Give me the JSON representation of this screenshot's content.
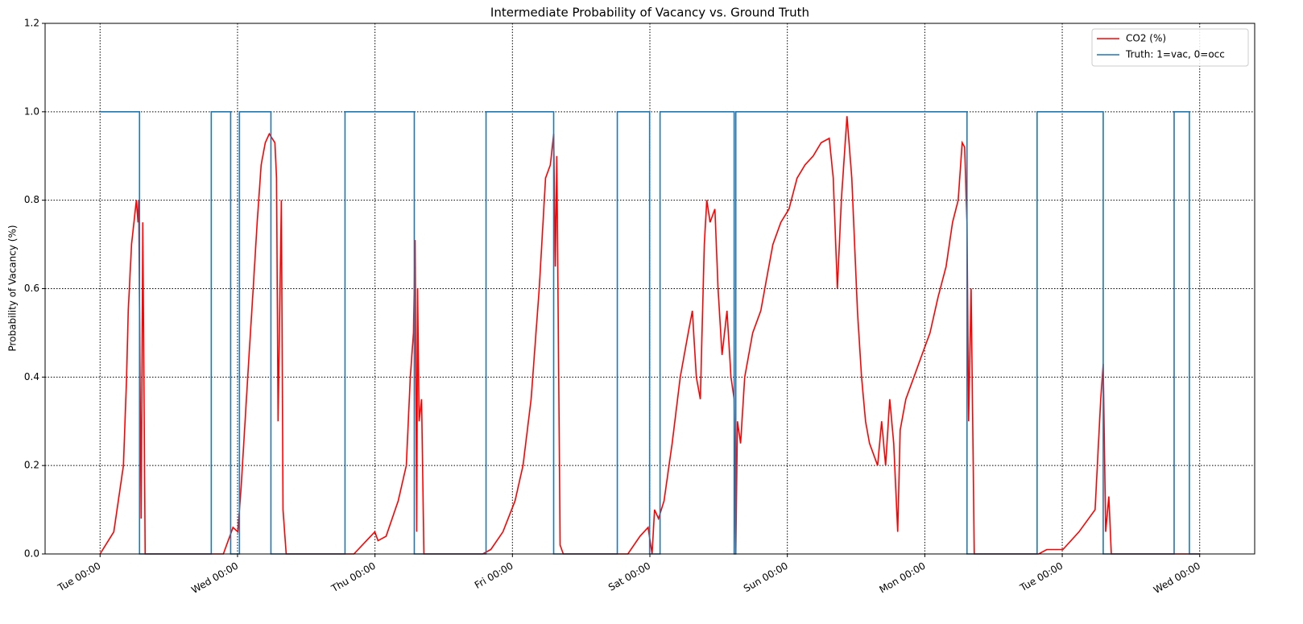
{
  "chart_data": {
    "type": "line",
    "title": "Intermediate Probability of Vacancy vs. Ground Truth",
    "y_label": "Probability of Vacancy (%)",
    "xlim": [
      -0.4,
      8.4
    ],
    "xticks": [
      {
        "value": 0,
        "label": "Tue 00:00"
      },
      {
        "value": 1,
        "label": "Wed 00:00"
      },
      {
        "value": 2,
        "label": "Thu 00:00"
      },
      {
        "value": 3,
        "label": "Fri 00:00"
      },
      {
        "value": 4,
        "label": "Sat 00:00"
      },
      {
        "value": 5,
        "label": "Sun 00:00"
      },
      {
        "value": 6,
        "label": "Mon 00:00"
      },
      {
        "value": 7,
        "label": "Tue 00:00"
      },
      {
        "value": 8,
        "label": "Wed 00:00"
      }
    ],
    "ylim": [
      0,
      1.2
    ],
    "yticks": [
      {
        "value": 0,
        "label": "0.0"
      },
      {
        "value": 0.2,
        "label": "0.2"
      },
      {
        "value": 0.4,
        "label": "0.4"
      },
      {
        "value": 0.6,
        "label": "0.6"
      },
      {
        "value": 0.8,
        "label": "0.8"
      },
      {
        "value": 1,
        "label": "1.0"
      },
      {
        "value": 1.2,
        "label": "1.2"
      }
    ],
    "grid": true,
    "legend": "upper right",
    "series": [
      {
        "name": "CO2 (%)",
        "color": "#ff0000",
        "x": [
          0,
          0.1,
          0.17,
          0.193,
          0.205,
          0.229,
          0.264,
          0.276,
          0.281,
          0.299,
          0.311,
          0.328,
          0.897,
          0.967,
          1.002,
          1.026,
          1.055,
          1.084,
          1.114,
          1.143,
          1.172,
          1.202,
          1.231,
          1.272,
          1.284,
          1.295,
          1.319,
          1.331,
          1.354,
          1.847,
          1.999,
          2.022,
          2.081,
          2.169,
          2.228,
          2.257,
          2.28,
          2.292,
          2.304,
          2.31,
          2.321,
          2.339,
          2.356,
          2.784,
          2.843,
          2.931,
          3.019,
          3.077,
          3.136,
          3.195,
          3.241,
          3.276,
          3.3,
          3.312,
          3.323,
          3.347,
          3.37,
          3.84,
          3.928,
          3.987,
          4.016,
          4.034,
          4.063,
          4.103,
          4.162,
          4.221,
          4.279,
          4.309,
          4.338,
          4.367,
          4.396,
          4.414,
          4.438,
          4.473,
          4.496,
          4.525,
          4.561,
          4.59,
          4.613,
          4.625,
          4.637,
          4.66,
          4.69,
          4.748,
          4.807,
          4.836,
          4.895,
          4.953,
          5.012,
          5.071,
          5.129,
          5.188,
          5.246,
          5.305,
          5.334,
          5.364,
          5.393,
          5.434,
          5.469,
          5.51,
          5.54,
          5.569,
          5.598,
          5.657,
          5.686,
          5.715,
          5.745,
          5.774,
          5.803,
          5.821,
          5.862,
          5.921,
          5.979,
          6.038,
          6.096,
          6.155,
          6.202,
          6.243,
          6.272,
          6.29,
          6.307,
          6.319,
          6.337,
          6.36,
          6.829,
          6.888,
          7.005,
          7.122,
          7.239,
          7.28,
          7.298,
          7.316,
          7.339,
          7.357,
          8.002
        ],
        "values": [
          0,
          0.05,
          0.2,
          0.4,
          0.55,
          0.7,
          0.8,
          0.75,
          0.8,
          0.08,
          0.75,
          0,
          0,
          0.06,
          0.05,
          0.15,
          0.3,
          0.45,
          0.6,
          0.75,
          0.88,
          0.93,
          0.95,
          0.93,
          0.85,
          0.3,
          0.8,
          0.1,
          0,
          0,
          0.05,
          0.03,
          0.04,
          0.12,
          0.2,
          0.4,
          0.5,
          0.71,
          0.05,
          0.6,
          0.3,
          0.35,
          0,
          0,
          0.01,
          0.05,
          0.12,
          0.2,
          0.35,
          0.6,
          0.85,
          0.88,
          0.95,
          0.65,
          0.9,
          0.02,
          0,
          0,
          0.04,
          0.06,
          0,
          0.1,
          0.08,
          0.12,
          0.25,
          0.4,
          0.5,
          0.55,
          0.4,
          0.35,
          0.7,
          0.8,
          0.75,
          0.78,
          0.6,
          0.45,
          0.55,
          0.4,
          0.35,
          0,
          0.3,
          0.25,
          0.4,
          0.5,
          0.55,
          0.6,
          0.7,
          0.75,
          0.78,
          0.85,
          0.88,
          0.9,
          0.93,
          0.94,
          0.85,
          0.6,
          0.8,
          0.99,
          0.85,
          0.55,
          0.4,
          0.3,
          0.25,
          0.2,
          0.3,
          0.2,
          0.35,
          0.25,
          0.05,
          0.28,
          0.35,
          0.4,
          0.45,
          0.5,
          0.58,
          0.65,
          0.75,
          0.8,
          0.93,
          0.92,
          0.75,
          0.3,
          0.6,
          0,
          0,
          0.01,
          0.01,
          0.05,
          0.1,
          0.35,
          0.43,
          0.05,
          0.13,
          0,
          0
        ]
      },
      {
        "name": "Truth: 1=vac, 0=occ",
        "color": "#1f77b4",
        "x": [
          0,
          0.287,
          0.287,
          0.809,
          0.809,
          0.95,
          0.95,
          1.014,
          1.014,
          1.243,
          1.243,
          1.782,
          1.782,
          2.286,
          2.286,
          2.808,
          2.808,
          3.3,
          3.3,
          3.763,
          3.763,
          3.998,
          3.998,
          4.074,
          4.074,
          4.613,
          4.613,
          4.625,
          4.625,
          6.307,
          6.307,
          6.817,
          6.817,
          7.298,
          7.298,
          7.814,
          7.814,
          7.925,
          7.925,
          8.001
        ],
        "values": [
          1,
          1,
          0,
          0,
          1,
          1,
          0,
          0,
          1,
          1,
          0,
          0,
          1,
          1,
          0,
          0,
          1,
          1,
          0,
          0,
          1,
          1,
          0,
          0,
          1,
          1,
          0,
          0,
          1,
          1,
          0,
          0,
          1,
          1,
          0,
          0,
          1,
          1,
          0,
          0
        ]
      }
    ]
  }
}
